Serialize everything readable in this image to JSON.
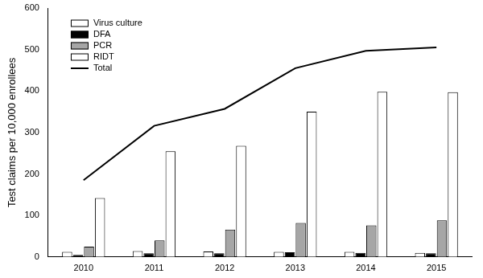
{
  "chart_data": {
    "type": "bar",
    "y_label": "Test claims per 10,000 enrollees",
    "categories": [
      "2010",
      "2011",
      "2012",
      "2013",
      "2014",
      "2015"
    ],
    "series": [
      {
        "name": "Virus culture",
        "type": "bar",
        "color": "#ffffff",
        "values": [
          12,
          14,
          13,
          12,
          12,
          10
        ]
      },
      {
        "name": "DFA",
        "type": "bar",
        "color": "#000000",
        "values": [
          5,
          9,
          9,
          11,
          10,
          9
        ]
      },
      {
        "name": "PCR",
        "type": "bar",
        "color": "#a6a6a6",
        "values": [
          25,
          40,
          66,
          82,
          76,
          88
        ]
      },
      {
        "name": "RIDT",
        "type": "bar",
        "color": "#ffffff",
        "values": [
          142,
          255,
          268,
          350,
          398,
          397
        ]
      },
      {
        "name": "Total",
        "type": "line",
        "color": "#000000",
        "values": [
          185,
          316,
          357,
          455,
          497,
          505
        ]
      }
    ],
    "ylim": [
      0,
      600
    ],
    "yticks": [
      0,
      100,
      200,
      300,
      400,
      500,
      600
    ],
    "grid": false,
    "legend": "upper left"
  }
}
